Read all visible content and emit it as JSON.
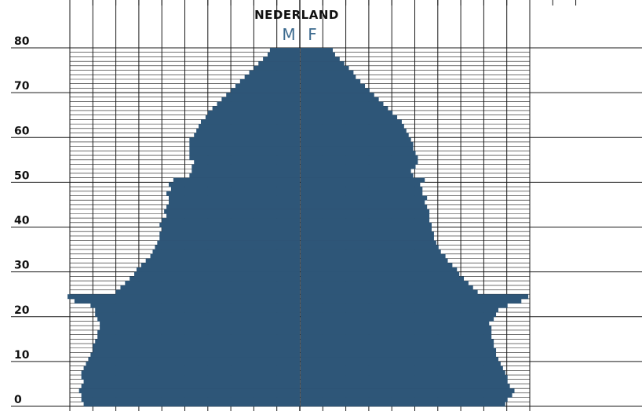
{
  "title": "NEDERLAND",
  "sex_labels": {
    "male": "M",
    "female": "F"
  },
  "colors": {
    "bar": "#2e5678",
    "grid": "#1a1a1a",
    "text": "#111111",
    "sex_label": "#3d6b8f"
  },
  "chart_data": {
    "type": "bar",
    "orientation": "horizontal",
    "subtype": "population-pyramid",
    "title": "NEDERLAND",
    "xlabel": "",
    "ylabel": "",
    "y_ticks": [
      "0",
      "10",
      "20",
      "30",
      "40",
      "50",
      "60",
      "70",
      "80"
    ],
    "ylim": [
      0,
      80
    ],
    "xlim_per_side": [
      0,
      10
    ],
    "grid": true,
    "categories": [
      0,
      1,
      2,
      3,
      4,
      5,
      6,
      7,
      8,
      9,
      10,
      11,
      12,
      13,
      14,
      15,
      16,
      17,
      18,
      19,
      20,
      21,
      22,
      23,
      24,
      25,
      26,
      27,
      28,
      29,
      30,
      31,
      32,
      33,
      34,
      35,
      36,
      37,
      38,
      39,
      40,
      41,
      42,
      43,
      44,
      45,
      46,
      47,
      48,
      49,
      50,
      51,
      52,
      53,
      54,
      55,
      56,
      57,
      58,
      59,
      60,
      61,
      62,
      63,
      64,
      65,
      66,
      67,
      68,
      69,
      70,
      71,
      72,
      73,
      74,
      75,
      76,
      77,
      78,
      79
    ],
    "series": [
      {
        "name": "M",
        "values": [
          9.4,
          9.5,
          9.5,
          9.6,
          9.5,
          9.4,
          9.5,
          9.5,
          9.4,
          9.3,
          9.2,
          9.1,
          9.0,
          9.0,
          8.9,
          8.8,
          8.8,
          8.7,
          8.7,
          8.8,
          8.9,
          8.9,
          9.1,
          9.8,
          10.1,
          8.0,
          7.8,
          7.6,
          7.4,
          7.2,
          7.1,
          6.9,
          6.7,
          6.5,
          6.4,
          6.3,
          6.2,
          6.1,
          6.1,
          6.0,
          6.1,
          6.0,
          5.8,
          5.9,
          5.8,
          5.7,
          5.7,
          5.8,
          5.6,
          5.7,
          5.5,
          4.8,
          4.7,
          4.7,
          4.6,
          4.8,
          4.8,
          4.8,
          4.8,
          4.8,
          4.6,
          4.5,
          4.4,
          4.3,
          4.1,
          4.0,
          3.8,
          3.6,
          3.4,
          3.2,
          3.0,
          2.8,
          2.6,
          2.4,
          2.2,
          2.0,
          1.8,
          1.6,
          1.4,
          1.3
        ]
      },
      {
        "name": "F",
        "values": [
          8.9,
          9.0,
          9.2,
          9.3,
          9.1,
          9.0,
          9.0,
          8.9,
          8.8,
          8.7,
          8.6,
          8.5,
          8.5,
          8.4,
          8.4,
          8.3,
          8.3,
          8.3,
          8.2,
          8.4,
          8.5,
          8.6,
          9.0,
          9.6,
          9.9,
          7.7,
          7.5,
          7.3,
          7.1,
          6.9,
          6.8,
          6.6,
          6.4,
          6.3,
          6.1,
          6.0,
          5.9,
          5.8,
          5.8,
          5.7,
          5.7,
          5.6,
          5.6,
          5.6,
          5.5,
          5.4,
          5.5,
          5.3,
          5.3,
          5.2,
          5.4,
          4.9,
          4.8,
          5.0,
          5.1,
          5.1,
          5.0,
          4.9,
          4.9,
          4.8,
          4.7,
          4.6,
          4.5,
          4.4,
          4.2,
          4.0,
          3.8,
          3.6,
          3.4,
          3.2,
          3.0,
          2.8,
          2.6,
          2.4,
          2.3,
          2.1,
          1.9,
          1.7,
          1.5,
          1.4
        ]
      }
    ]
  }
}
